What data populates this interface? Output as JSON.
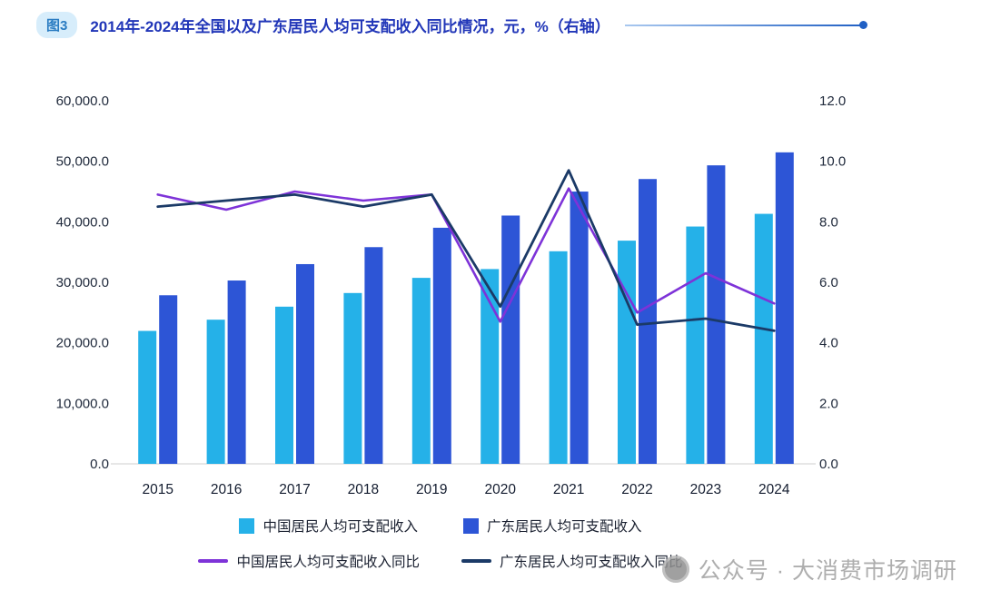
{
  "header": {
    "badge": "图3",
    "title": "2014年-2024年全国以及广东居民人均可支配收入同比情况，元，%（右轴）"
  },
  "watermark": {
    "text": "公众号 · 大消费市场调研"
  },
  "chart_data": {
    "type": "combo-bar-line",
    "title": "2014年-2024年全国以及广东居民人均可支配收入同比情况，元，%（右轴）",
    "grid": false,
    "legend_position": "bottom",
    "categories": [
      "2015",
      "2016",
      "2017",
      "2018",
      "2019",
      "2020",
      "2021",
      "2022",
      "2023",
      "2024"
    ],
    "left_axis": {
      "min": 0,
      "max": 60000,
      "ticks": [
        "0.0",
        "10,000.0",
        "20,000.0",
        "30,000.0",
        "40,000.0",
        "50,000.0",
        "60,000.0"
      ]
    },
    "right_axis": {
      "min": 0,
      "max": 12,
      "ticks": [
        "0.0",
        "2.0",
        "4.0",
        "6.0",
        "8.0",
        "10.0",
        "12.0"
      ]
    },
    "bar_series": [
      {
        "name": "中国居民人均可支配收入",
        "color": "#25b1e8",
        "axis": "left",
        "values": [
          21966,
          23821,
          25974,
          28228,
          30733,
          32189,
          35128,
          36883,
          39218,
          41314
        ]
      },
      {
        "name": "广东居民人均可支配收入",
        "color": "#2d55d6",
        "axis": "left",
        "values": [
          27859,
          30296,
          33003,
          35810,
          39014,
          41029,
          44993,
          47065,
          49327,
          51474
        ]
      }
    ],
    "line_series": [
      {
        "name": "中国居民人均可支配收入同比",
        "color": "#7e33d8",
        "axis": "right",
        "values": [
          8.9,
          8.4,
          9.0,
          8.7,
          8.9,
          4.7,
          9.1,
          5.0,
          6.3,
          5.3
        ]
      },
      {
        "name": "广东居民人均可支配收入同比",
        "color": "#1b3a67",
        "axis": "right",
        "values": [
          8.5,
          8.7,
          8.9,
          8.5,
          8.9,
          5.2,
          9.7,
          4.6,
          4.8,
          4.4
        ]
      }
    ]
  }
}
